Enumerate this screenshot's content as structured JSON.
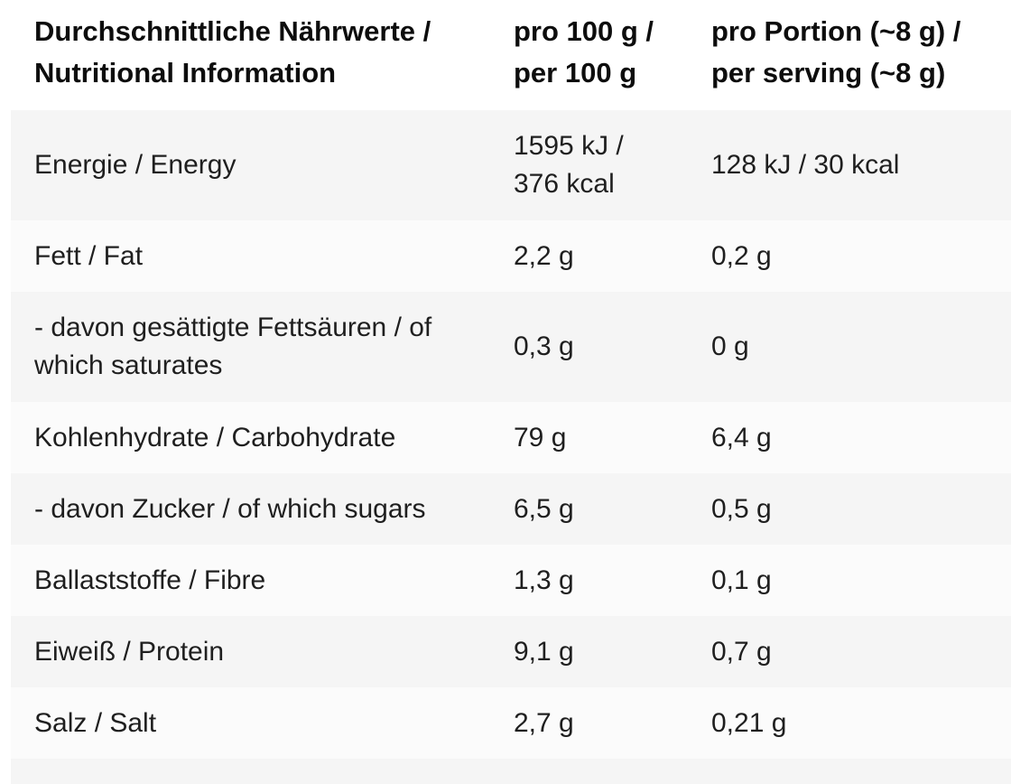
{
  "table": {
    "title_note": "nutrition facts table",
    "header": {
      "label": "Durchschnittliche Nährwerte /\nNutritional Information",
      "per_100g": "pro 100 g /\nper 100 g",
      "per_serving": "pro Portion (~8 g) /\nper serving (~8 g)"
    },
    "rows": [
      {
        "label": "Energie / Energy",
        "per_100g": "1595 kJ /\n376 kcal",
        "per_serving": "128 kJ / 30 kcal"
      },
      {
        "label": "Fett / Fat",
        "per_100g": "2,2 g",
        "per_serving": "0,2 g"
      },
      {
        "label": "- davon gesättigte Fettsäuren / of which saturates",
        "per_100g": "0,3 g",
        "per_serving": "0 g"
      },
      {
        "label": "Kohlenhydrate / Carbohydrate",
        "per_100g": "79 g",
        "per_serving": "6,4 g"
      },
      {
        "label": "- davon Zucker / of which sugars",
        "per_100g": "6,5 g",
        "per_serving": "0,5 g"
      },
      {
        "label": "Ballaststoffe / Fibre",
        "per_100g": "1,3 g",
        "per_serving": "0,1 g"
      },
      {
        "label": "Eiweiß / Protein",
        "per_100g": "9,1 g",
        "per_serving": "0,7 g"
      },
      {
        "label": "Salz / Salt",
        "per_100g": "2,7 g",
        "per_serving": "0,21 g"
      }
    ],
    "colors": {
      "row_stripe_gray": "#f5f5f5",
      "row_stripe_light": "#fbfbfb",
      "header_text": "#0d0d0d",
      "body_text": "#1f1f1f",
      "page_background": "#ffffff"
    }
  }
}
